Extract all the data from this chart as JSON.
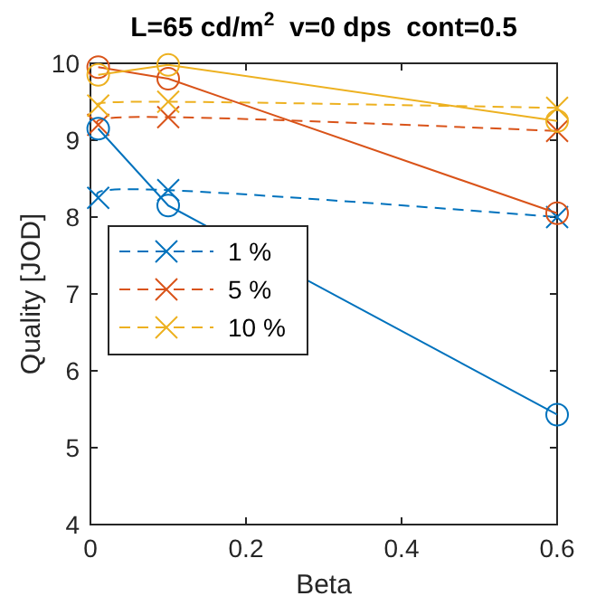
{
  "chart_data": {
    "type": "line",
    "title": "L=65 cd/m$^{2}$  v=0 dps  cont=0.5",
    "xlabel": "Beta",
    "ylabel": "Quality [JOD]",
    "x": [
      0.01,
      0.1,
      0.6
    ],
    "xlim": [
      0,
      0.6
    ],
    "xticks": [
      0,
      0.2,
      0.4,
      0.6
    ],
    "ylim": [
      4,
      10
    ],
    "yticks": [
      4,
      5,
      6,
      7,
      8,
      9,
      10
    ],
    "grid": false,
    "legend": "left",
    "series": [
      {
        "name": "1 %",
        "color": "#0072bd",
        "values": [
          8.25,
          8.35,
          8.0
        ],
        "marker": "cross",
        "line_style": "dashed"
      },
      {
        "name": "5 %",
        "color": "#d95319",
        "values": [
          9.2,
          9.3,
          9.12
        ],
        "marker": "cross",
        "line_style": "dashed"
      },
      {
        "name": "10 %",
        "color": "#edb120",
        "values": [
          9.45,
          9.5,
          9.42
        ],
        "marker": "cross",
        "line_style": "dashed"
      },
      {
        "color": "#0072bd",
        "values": [
          9.15,
          8.15,
          5.43
        ],
        "marker": "circle",
        "line_style": "solid"
      },
      {
        "color": "#d95319",
        "values": [
          9.95,
          9.8,
          8.05
        ],
        "marker": "circle",
        "line_style": "solid"
      },
      {
        "color": "#edb120",
        "values": [
          9.85,
          9.98,
          9.25
        ],
        "marker": "circle",
        "line_style": "solid"
      }
    ]
  }
}
